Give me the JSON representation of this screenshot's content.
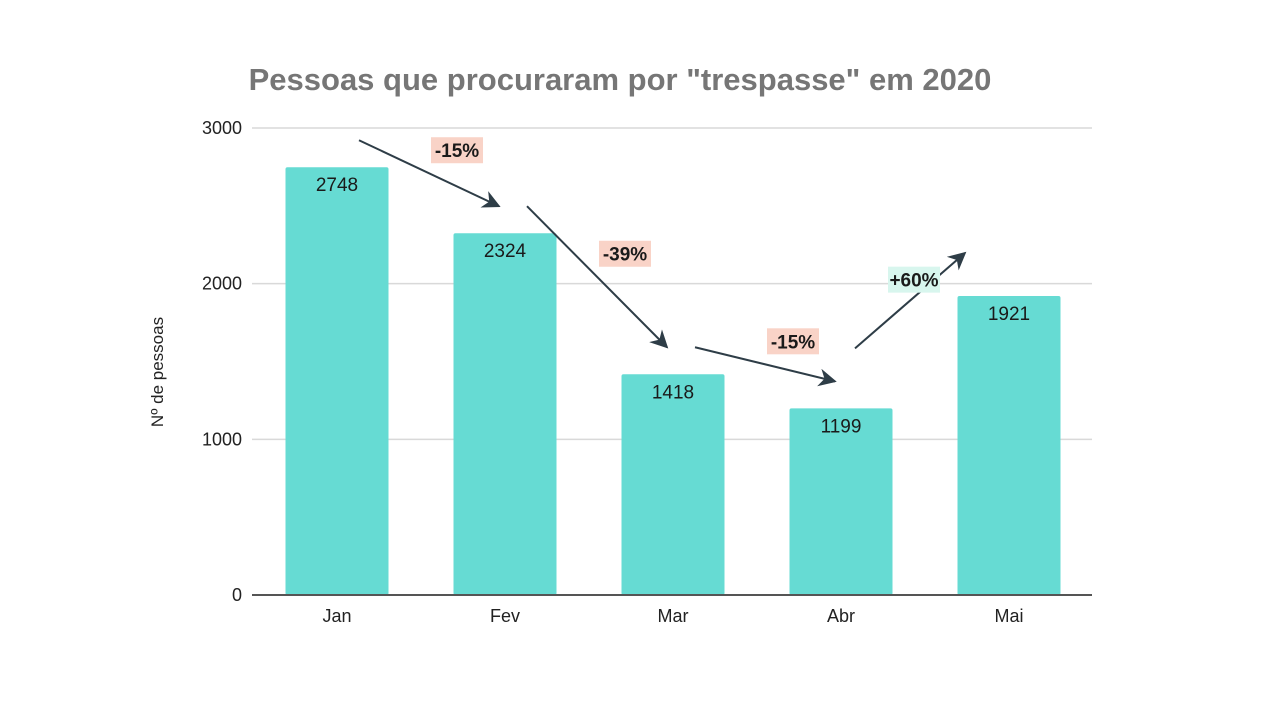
{
  "chart_data": {
    "type": "bar",
    "title": "Pessoas que procuraram por \"trespasse\" em 2020",
    "xlabel": "",
    "ylabel": "Nº de pessoas",
    "categories": [
      "Jan",
      "Fev",
      "Mar",
      "Abr",
      "Mai"
    ],
    "values": [
      2748,
      2324,
      1418,
      1199,
      1921
    ],
    "data_labels": [
      "2748",
      "2324",
      "1418",
      "1199",
      "1921"
    ],
    "ylim": [
      0,
      3000
    ],
    "yticks": [
      0,
      1000,
      2000,
      3000
    ],
    "ytick_labels": [
      "0",
      "1000",
      "2000",
      "3000"
    ],
    "grid": true,
    "legend": "none",
    "bar_color": "#66dbd3",
    "annotations": [
      {
        "text": "-15%",
        "from": "Jan",
        "to": "Fev",
        "direction": "down",
        "highlight": "#f9d3c7"
      },
      {
        "text": "-39%",
        "from": "Fev",
        "to": "Mar",
        "direction": "down",
        "highlight": "#f9d3c7"
      },
      {
        "text": "-15%",
        "from": "Mar",
        "to": "Abr",
        "direction": "down",
        "highlight": "#f9d3c7"
      },
      {
        "text": "+60%",
        "from": "Abr",
        "to": "Mai",
        "direction": "up",
        "highlight": "#d8f6ee"
      }
    ]
  }
}
